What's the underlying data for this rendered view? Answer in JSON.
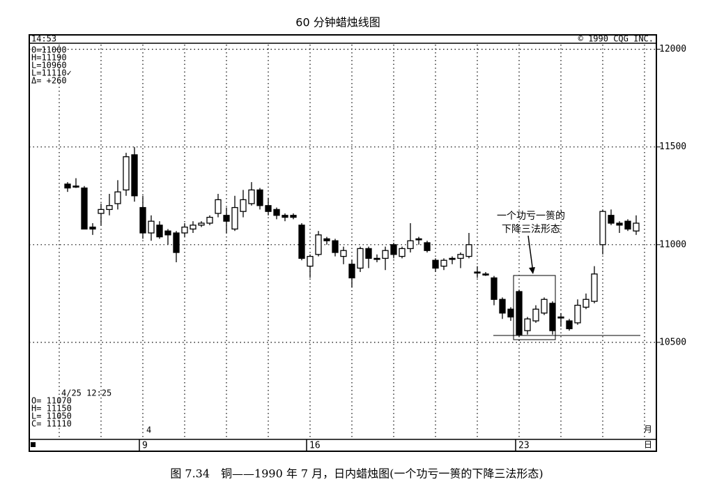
{
  "chart_data": {
    "type": "candlestick",
    "title": "60 分钟蜡烛线图",
    "time": "14:53",
    "copyright": "© 1990 CQG INC.",
    "info_box": [
      "O=11000",
      "H=11190",
      "L=10960",
      "L=11110✓",
      "Δ= +260"
    ],
    "cursor_box": [
      "4/25 12:25",
      "O= 11070",
      "H= 11150",
      "L= 11050",
      "C= 11110"
    ],
    "month": "4",
    "axis_units": [
      "月",
      "日"
    ],
    "annotation": [
      "一个功亏一篑的",
      "下降三法形态"
    ],
    "caption": "图 7.34　铜——1990 年 7 月，日内蜡烛图(一个功亏一篑的下降三法形态)",
    "categories": [
      null,
      null,
      null,
      null,
      null,
      null,
      null,
      null,
      null,
      "9",
      null,
      null,
      null,
      null,
      null,
      null,
      null,
      null,
      null,
      null,
      null,
      null,
      null,
      null,
      null,
      null,
      null,
      null,
      null,
      "16",
      null,
      null,
      null,
      null,
      null,
      null,
      null,
      null,
      null,
      null,
      null,
      null,
      null,
      null,
      null,
      null,
      null,
      null,
      null,
      null,
      null,
      null,
      null,
      null,
      "23",
      null,
      null,
      null,
      null,
      null,
      null,
      null,
      null,
      null,
      null,
      null,
      null,
      null,
      null
    ],
    "open": [
      11310,
      11300,
      11290,
      11090,
      11160,
      11180,
      11210,
      11280,
      11460,
      11190,
      11060,
      11100,
      11070,
      11060,
      11060,
      11080,
      11100,
      11110,
      11160,
      11150,
      11080,
      11170,
      11210,
      11280,
      11200,
      11180,
      11150,
      11150,
      11100,
      10890,
      10950,
      11030,
      11020,
      10940,
      10900,
      10880,
      10980,
      10930,
      10930,
      11000,
      10940,
      10980,
      11030,
      11010,
      10920,
      10890,
      10930,
      10930,
      10940,
      10860,
      10850,
      10830,
      10720,
      10670,
      10760,
      10560,
      10610,
      10650,
      10700,
      10630,
      10610,
      10600,
      10680,
      10710,
      11000,
      11150,
      11110,
      11120,
      11070
    ],
    "high": [
      11320,
      11340,
      11300,
      11110,
      11210,
      11260,
      11330,
      11470,
      11500,
      11250,
      11150,
      11120,
      11080,
      11070,
      11110,
      11120,
      11120,
      11150,
      11260,
      11190,
      11250,
      11280,
      11320,
      11290,
      11240,
      11190,
      11160,
      11160,
      11110,
      10950,
      11070,
      11040,
      11030,
      10990,
      10920,
      10990,
      10990,
      10950,
      10990,
      11010,
      10990,
      11110,
      11040,
      11020,
      10930,
      10930,
      10940,
      10960,
      11060,
      10890,
      10860,
      10840,
      10730,
      10680,
      10770,
      10630,
      10690,
      10730,
      10710,
      10650,
      10620,
      10720,
      10750,
      10890,
      11180,
      11180,
      11120,
      11130,
      11150
    ],
    "low": [
      11270,
      11290,
      11080,
      11050,
      11100,
      11150,
      11180,
      11250,
      11220,
      11030,
      11020,
      11030,
      11000,
      10910,
      11040,
      11060,
      11090,
      11100,
      11140,
      11060,
      11070,
      11140,
      11200,
      11180,
      11150,
      11130,
      11120,
      11130,
      10920,
      10830,
      10940,
      11000,
      10940,
      10900,
      10780,
      10860,
      10880,
      10910,
      10870,
      10930,
      10930,
      10960,
      11000,
      10960,
      10860,
      10870,
      10900,
      10880,
      10930,
      10830,
      10840,
      10690,
      10620,
      10610,
      10530,
      10540,
      10600,
      10640,
      10540,
      10580,
      10560,
      10590,
      10670,
      10700,
      10950,
      11100,
      11060,
      11070,
      11050
    ],
    "close": [
      11290,
      11295,
      11080,
      11080,
      11180,
      11200,
      11270,
      11450,
      11250,
      11060,
      11120,
      11040,
      11050,
      10960,
      11090,
      11100,
      11110,
      11140,
      11230,
      11120,
      11190,
      11230,
      11280,
      11200,
      11170,
      11150,
      11140,
      11140,
      10930,
      10940,
      11050,
      11020,
      10960,
      10970,
      10830,
      10980,
      10930,
      10930,
      10970,
      10950,
      10980,
      11020,
      11030,
      10970,
      10880,
      10920,
      10930,
      10950,
      11000,
      10860,
      10850,
      10720,
      10650,
      10630,
      10540,
      10620,
      10670,
      10720,
      10560,
      10630,
      10570,
      10690,
      10720,
      10850,
      11170,
      11110,
      11100,
      11080,
      11110
    ],
    "ylim": [
      10000,
      12020
    ],
    "yticks": [
      10500,
      11000,
      11500,
      12000
    ],
    "grid": true,
    "color": "#000000"
  }
}
